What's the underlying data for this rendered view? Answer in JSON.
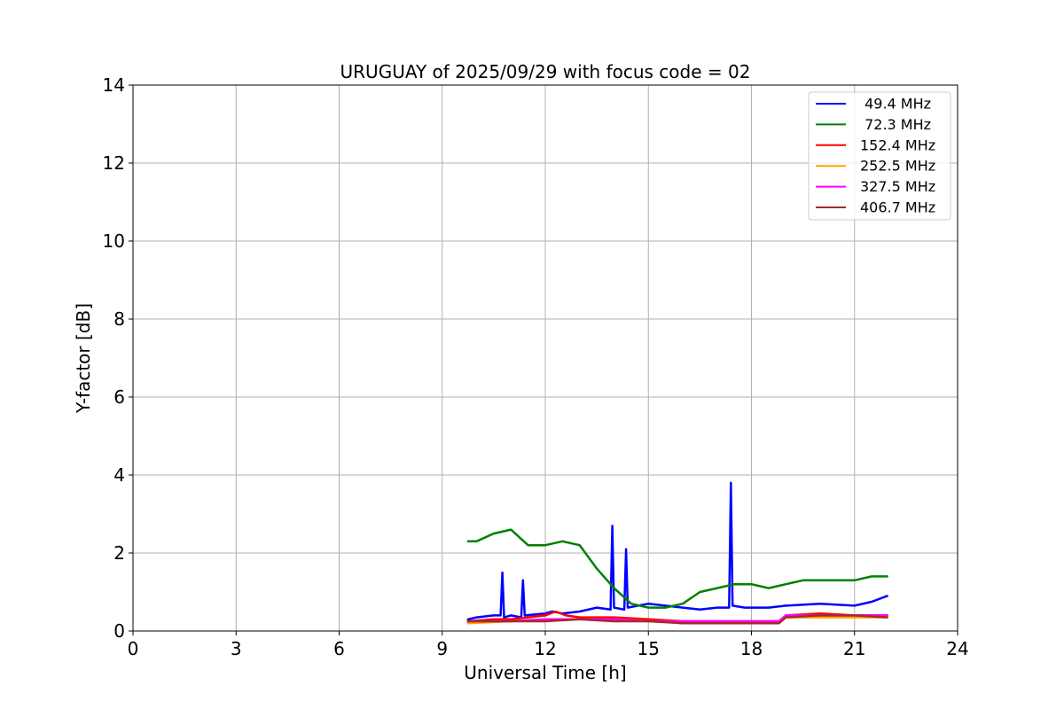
{
  "chart_data": {
    "type": "line",
    "title": "URUGUAY of 2025/09/29 with focus code = 02",
    "xlabel": "Universal Time [h]",
    "ylabel": "Y-factor [dB]",
    "xlim": [
      0,
      24
    ],
    "ylim": [
      0,
      14
    ],
    "xticks": [
      0,
      3,
      6,
      9,
      12,
      15,
      18,
      21,
      24
    ],
    "yticks": [
      0,
      2,
      4,
      6,
      8,
      10,
      12,
      14
    ],
    "grid": true,
    "legend_position": "top-right",
    "series": [
      {
        "name": " 49.4 MHz",
        "color": "#0000ff",
        "x": [
          9.75,
          10.0,
          10.5,
          10.7,
          10.75,
          10.8,
          11.0,
          11.3,
          11.35,
          11.4,
          12.0,
          12.2,
          12.5,
          13.0,
          13.5,
          13.9,
          13.95,
          14.0,
          14.3,
          14.35,
          14.4,
          15.0,
          15.5,
          16.0,
          16.5,
          17.0,
          17.35,
          17.4,
          17.45,
          17.8,
          18.5,
          19.0,
          20.0,
          21.0,
          21.5,
          21.95
        ],
        "y": [
          0.3,
          0.35,
          0.4,
          0.4,
          1.5,
          0.35,
          0.4,
          0.35,
          1.3,
          0.4,
          0.45,
          0.5,
          0.45,
          0.5,
          0.6,
          0.55,
          2.7,
          0.6,
          0.55,
          2.1,
          0.6,
          0.7,
          0.65,
          0.6,
          0.55,
          0.6,
          0.6,
          3.8,
          0.65,
          0.6,
          0.6,
          0.65,
          0.7,
          0.65,
          0.75,
          0.9
        ]
      },
      {
        "name": " 72.3 MHz",
        "color": "#008000",
        "x": [
          9.75,
          10.0,
          10.5,
          11.0,
          11.5,
          12.0,
          12.5,
          13.0,
          13.5,
          14.0,
          14.5,
          15.0,
          15.5,
          16.0,
          16.5,
          17.0,
          17.5,
          18.0,
          18.5,
          19.0,
          19.5,
          20.0,
          20.5,
          21.0,
          21.5,
          21.95
        ],
        "y": [
          2.3,
          2.3,
          2.5,
          2.6,
          2.2,
          2.2,
          2.3,
          2.2,
          1.6,
          1.1,
          0.7,
          0.6,
          0.6,
          0.7,
          1.0,
          1.1,
          1.2,
          1.2,
          1.1,
          1.2,
          1.3,
          1.3,
          1.3,
          1.3,
          1.4,
          1.4
        ]
      },
      {
        "name": "152.4 MHz",
        "color": "#ff0000",
        "x": [
          9.75,
          10.5,
          11.0,
          11.5,
          12.0,
          12.3,
          12.6,
          13.0,
          14.0,
          15.0,
          16.0,
          17.0,
          18.0,
          18.8,
          19.0,
          20.0,
          21.0,
          21.95
        ],
        "y": [
          0.25,
          0.3,
          0.3,
          0.35,
          0.4,
          0.5,
          0.4,
          0.35,
          0.35,
          0.3,
          0.25,
          0.25,
          0.25,
          0.25,
          0.4,
          0.45,
          0.4,
          0.4
        ]
      },
      {
        "name": "252.5 MHz",
        "color": "#ffa500",
        "x": [
          9.75,
          11.0,
          12.0,
          13.0,
          14.0,
          15.0,
          16.0,
          17.0,
          18.0,
          18.8,
          19.0,
          20.0,
          21.0,
          21.95
        ],
        "y": [
          0.2,
          0.25,
          0.3,
          0.3,
          0.3,
          0.25,
          0.2,
          0.2,
          0.2,
          0.2,
          0.35,
          0.35,
          0.35,
          0.35
        ]
      },
      {
        "name": "327.5 MHz",
        "color": "#ff00ff",
        "x": [
          9.75,
          11.0,
          12.0,
          13.0,
          14.0,
          15.0,
          16.0,
          17.0,
          18.0,
          18.8,
          19.0,
          20.0,
          21.0,
          21.95
        ],
        "y": [
          0.25,
          0.25,
          0.3,
          0.3,
          0.3,
          0.25,
          0.25,
          0.25,
          0.25,
          0.25,
          0.4,
          0.4,
          0.4,
          0.4
        ]
      },
      {
        "name": "406.7 MHz",
        "color": "#a52a2a",
        "x": [
          9.75,
          11.0,
          12.0,
          13.0,
          14.0,
          15.0,
          16.0,
          17.0,
          18.0,
          18.8,
          19.0,
          20.0,
          21.0,
          21.95
        ],
        "y": [
          0.25,
          0.25,
          0.25,
          0.3,
          0.25,
          0.25,
          0.2,
          0.2,
          0.2,
          0.2,
          0.35,
          0.4,
          0.4,
          0.35
        ]
      }
    ]
  }
}
